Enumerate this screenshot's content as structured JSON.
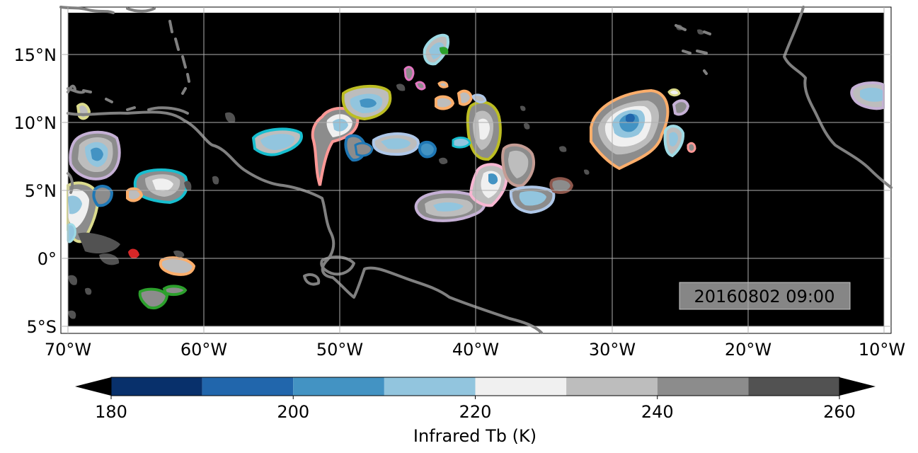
{
  "map": {
    "timestamp": "20160802 09:00",
    "lon_labels": [
      "70°W",
      "60°W",
      "50°W",
      "40°W",
      "30°W",
      "20°W",
      "10°W"
    ],
    "lat_labels": [
      "15°N",
      "10°N",
      "5°N",
      "0°",
      "5°S"
    ],
    "lon_values": [
      -70,
      -60,
      -50,
      -40,
      -30,
      -20,
      -10
    ],
    "lat_values": [
      15,
      10,
      5,
      0,
      -5
    ],
    "background_color": "#000000",
    "coastline_color": "#808080"
  },
  "colorbar": {
    "label": "Infrared Tb (K)",
    "tick_labels": [
      "180",
      "200",
      "220",
      "240",
      "260"
    ],
    "tick_values": [
      180,
      200,
      220,
      240,
      260
    ],
    "levels": [
      180,
      190,
      200,
      210,
      220,
      230,
      240,
      250,
      260
    ],
    "colors": [
      "#08306b",
      "#2166ac",
      "#4393c3",
      "#92c5de",
      "#f0f0f0",
      "#bdbdbd",
      "#8c8c8c",
      "#525252"
    ],
    "under_color": "#000000",
    "over_color": "#000000"
  }
}
